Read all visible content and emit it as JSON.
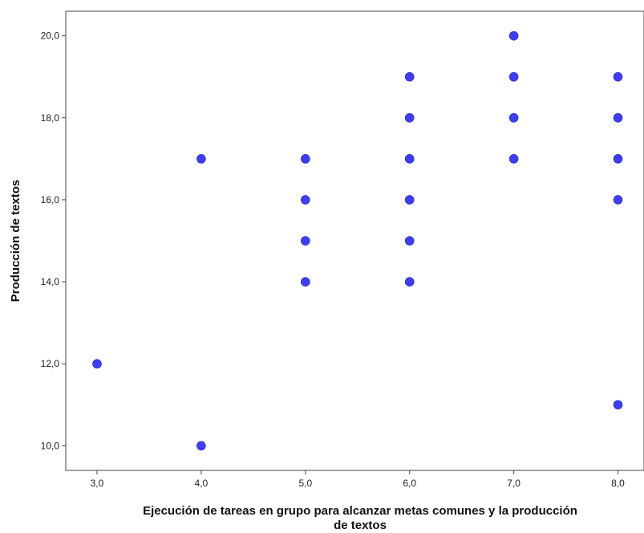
{
  "chart_data": {
    "type": "scatter",
    "title": "",
    "xlabel_lines": [
      "Ejecución de tareas en grupo para alcanzar metas comunes y la producción",
      "de textos"
    ],
    "ylabel": "Producción de textos",
    "xlim": [
      2.7,
      8.25
    ],
    "ylim": [
      9.4,
      20.6
    ],
    "x_ticks": [
      3,
      4,
      5,
      6,
      7,
      8
    ],
    "x_tick_labels": [
      "3,0",
      "4,0",
      "5,0",
      "6,0",
      "7,0",
      "8,0"
    ],
    "y_ticks": [
      10,
      12,
      14,
      16,
      18,
      20
    ],
    "y_tick_labels": [
      "10,0",
      "12,0",
      "14,0",
      "16,0",
      "18,0",
      "20,0"
    ],
    "grid": false,
    "marker_color": "#3d3df5",
    "points": [
      {
        "x": 3,
        "y": 12
      },
      {
        "x": 4,
        "y": 17
      },
      {
        "x": 4,
        "y": 10
      },
      {
        "x": 5,
        "y": 17
      },
      {
        "x": 5,
        "y": 16
      },
      {
        "x": 5,
        "y": 15
      },
      {
        "x": 5,
        "y": 14
      },
      {
        "x": 6,
        "y": 19
      },
      {
        "x": 6,
        "y": 18
      },
      {
        "x": 6,
        "y": 17
      },
      {
        "x": 6,
        "y": 16
      },
      {
        "x": 6,
        "y": 15
      },
      {
        "x": 6,
        "y": 14
      },
      {
        "x": 7,
        "y": 20
      },
      {
        "x": 7,
        "y": 19
      },
      {
        "x": 7,
        "y": 18
      },
      {
        "x": 7,
        "y": 17
      },
      {
        "x": 8,
        "y": 19
      },
      {
        "x": 8,
        "y": 18
      },
      {
        "x": 8,
        "y": 17
      },
      {
        "x": 8,
        "y": 16
      },
      {
        "x": 8,
        "y": 11
      }
    ]
  }
}
